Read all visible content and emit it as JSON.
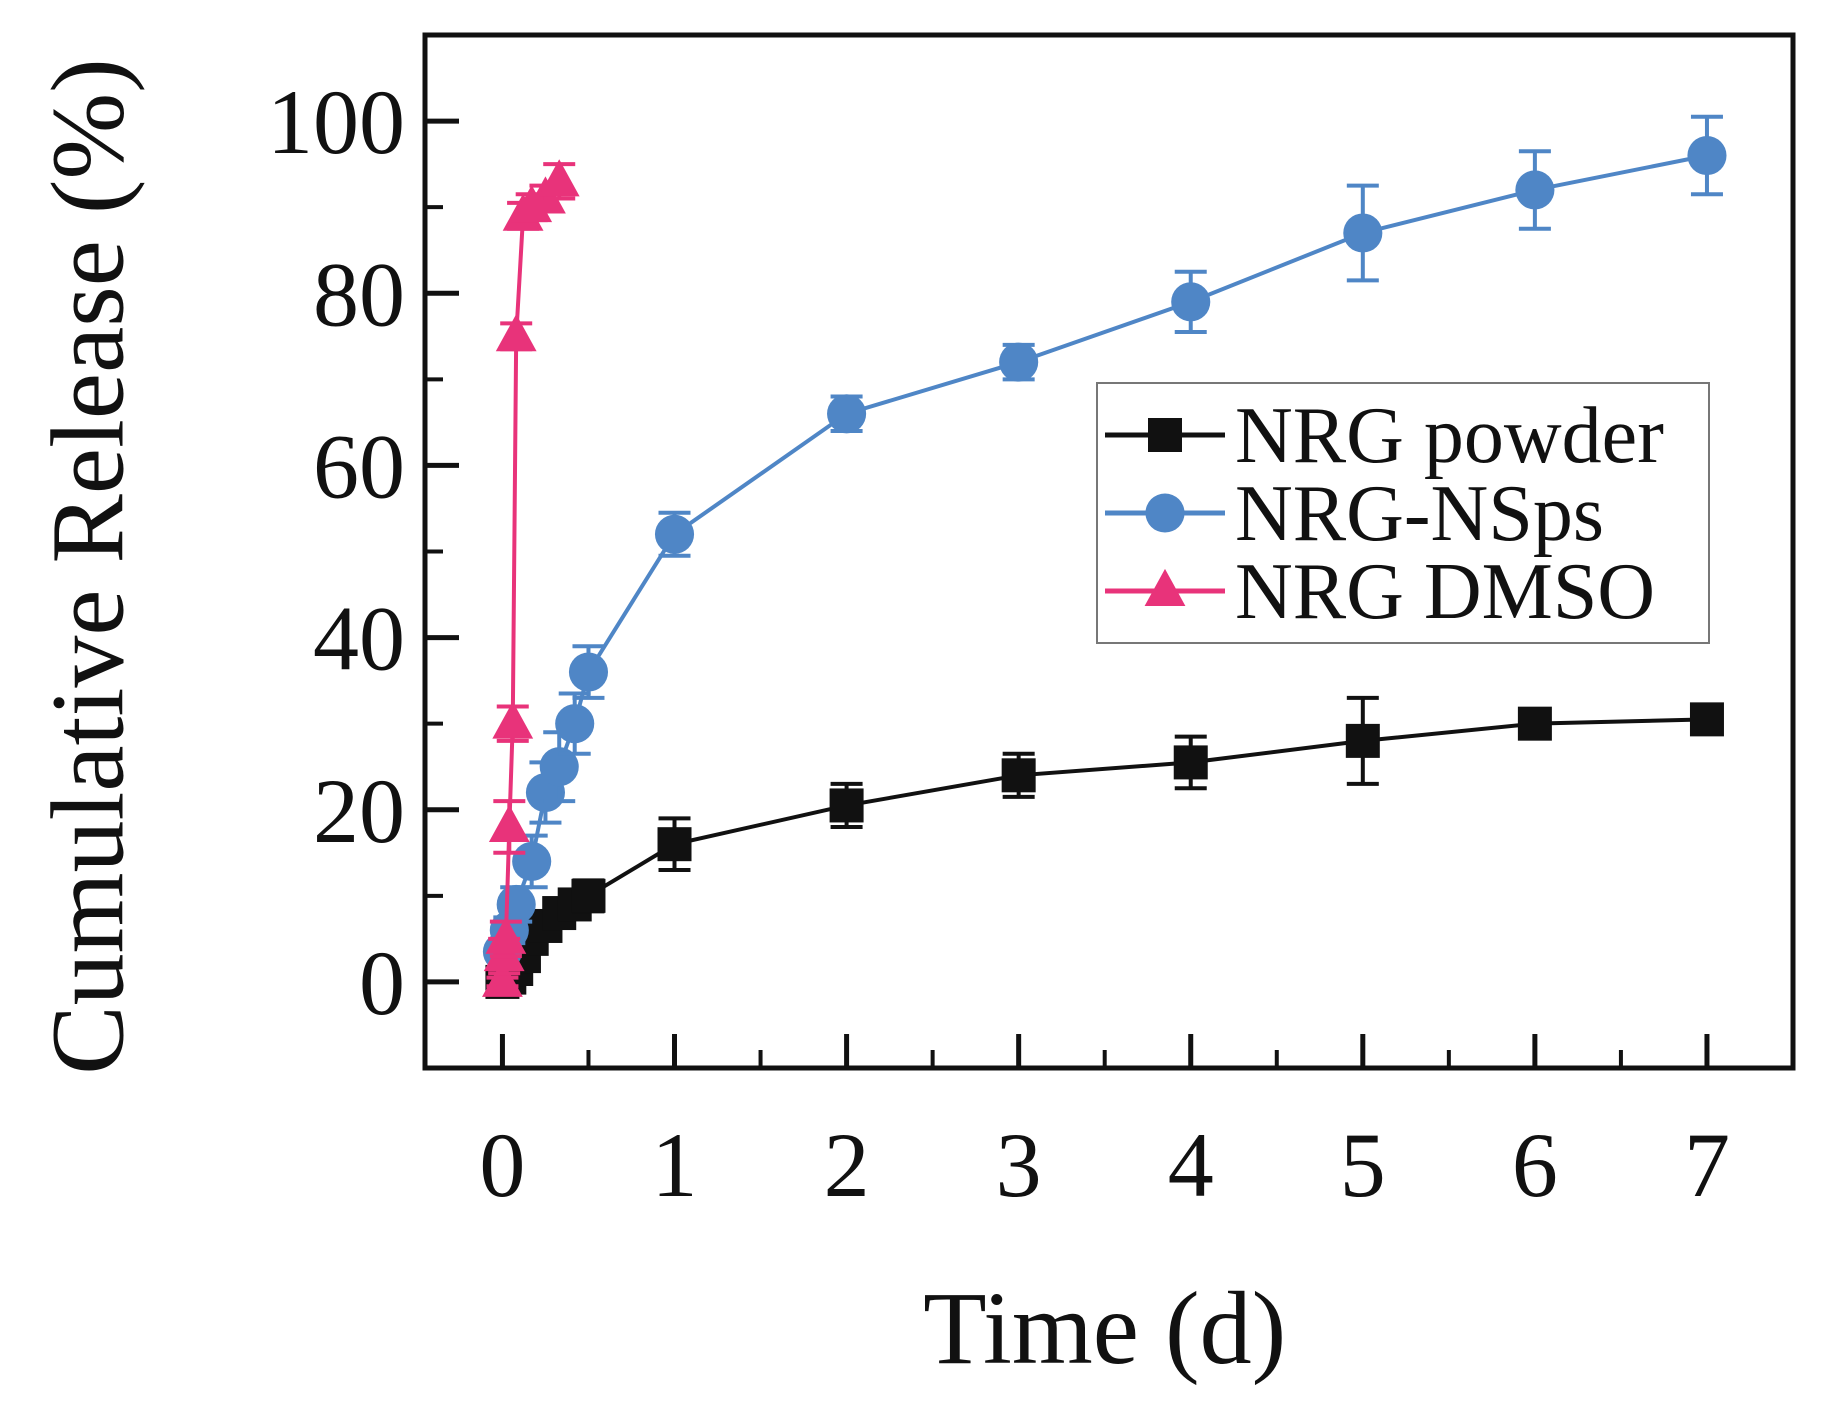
{
  "chart_data": {
    "type": "line",
    "title": "",
    "xlabel": "Time (d)",
    "ylabel": "Cumulative Release (%)",
    "xlim": [
      -0.45,
      7.5
    ],
    "ylim": [
      -10,
      110
    ],
    "xticks": [
      0,
      1,
      2,
      3,
      4,
      5,
      6,
      7
    ],
    "yticks": [
      0,
      20,
      40,
      60,
      80,
      100
    ],
    "grid": false,
    "legend_position": "center-right",
    "series": [
      {
        "name": "NRG powder",
        "color": "#111111",
        "marker": "square",
        "x": [
          0,
          0.04,
          0.08,
          0.125,
          0.17,
          0.25,
          0.33,
          0.42,
          0.5,
          1,
          2,
          3,
          4,
          5,
          6,
          7
        ],
        "y": [
          0,
          0.5,
          1.5,
          3,
          5,
          6.5,
          8,
          9,
          10,
          16,
          20.5,
          24,
          25.5,
          28,
          30,
          30.5
        ],
        "err": [
          0.5,
          0.8,
          1,
          1.2,
          1.3,
          1.5,
          1.5,
          1.5,
          1.8,
          3,
          2.5,
          2.5,
          3,
          5,
          1.5,
          1.5
        ]
      },
      {
        "name": "NRG-NSps",
        "color": "#4f86c6",
        "marker": "circle",
        "x": [
          0,
          0.04,
          0.08,
          0.17,
          0.25,
          0.33,
          0.42,
          0.5,
          1,
          2,
          3,
          4,
          5,
          6,
          7
        ],
        "y": [
          3.5,
          6,
          9,
          14,
          22,
          25,
          30,
          36,
          52,
          66,
          72,
          79,
          87,
          92,
          96
        ],
        "err": [
          1,
          1.5,
          2,
          3,
          3.5,
          4,
          3.5,
          3,
          2.5,
          2,
          2,
          3.5,
          5.5,
          4.5,
          4.5
        ]
      },
      {
        "name": "NRG DMSO",
        "color": "#e8337a",
        "marker": "triangle",
        "x": [
          0,
          0.01,
          0.02,
          0.04,
          0.06,
          0.08,
          0.12,
          0.17,
          0.25,
          0.33
        ],
        "y": [
          0,
          3,
          5,
          18,
          30,
          75,
          89,
          90,
          91,
          93
        ],
        "err": [
          0.5,
          2,
          2,
          3,
          2,
          1.5,
          1.5,
          1.5,
          1.5,
          2
        ]
      }
    ]
  }
}
